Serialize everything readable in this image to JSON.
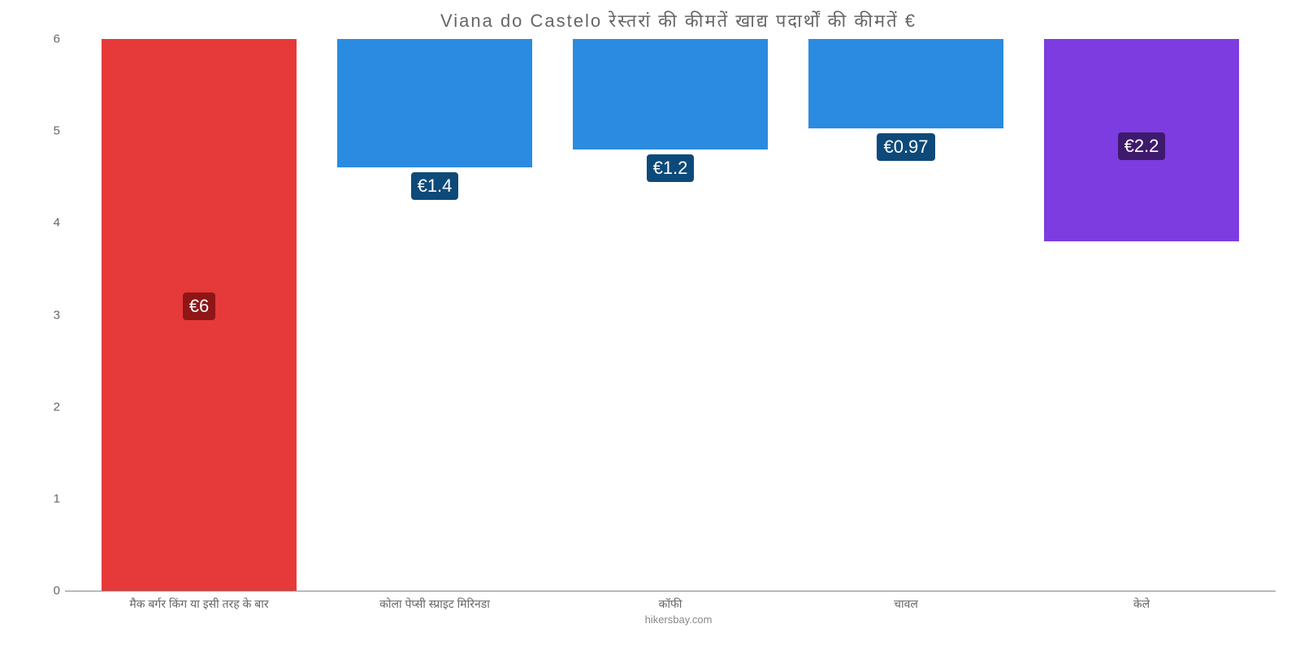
{
  "chart": {
    "type": "bar",
    "title": "Viana do Castelo रेस्तरां की कीमतें खाद्य पदार्थों की कीमतें €",
    "title_fontsize": 22,
    "title_color": "#666666",
    "credit": "hikersbay.com",
    "credit_color": "#888888",
    "background_color": "#ffffff",
    "axis_color": "#888888",
    "ylim_min": 0,
    "ylim_max": 6,
    "ytick_step": 1,
    "ytick_color": "#666666",
    "ytick_fontsize": 15,
    "xlabel_color": "#666666",
    "xlabel_fontsize": 14,
    "value_label_color": "#ffffff",
    "value_label_fontsize": 22,
    "bars": [
      {
        "category": "मैक बर्गर किंग या इसी तरह के बार",
        "value": 6,
        "value_label": "€6",
        "color": "#e63939",
        "badge_bg": "#8e1616",
        "label_inside": true
      },
      {
        "category": "कोला पेप्सी स्प्राइट मिरिनडा",
        "value": 1.4,
        "value_label": "€1.4",
        "color": "#2a8be0",
        "badge_bg": "#0d4a7a",
        "label_inside": false
      },
      {
        "category": "कॉफी",
        "value": 1.2,
        "value_label": "€1.2",
        "color": "#2a8be0",
        "badge_bg": "#0d4a7a",
        "label_inside": false
      },
      {
        "category": "चावल",
        "value": 0.97,
        "value_label": "€0.97",
        "color": "#2a8be0",
        "badge_bg": "#0d4a7a",
        "label_inside": false
      },
      {
        "category": "केले",
        "value": 2.2,
        "value_label": "€2.2",
        "color": "#7c3ce0",
        "badge_bg": "#3e1a6d",
        "label_inside": true
      }
    ],
    "yticks": [
      {
        "v": 0,
        "label": "0"
      },
      {
        "v": 1,
        "label": "1"
      },
      {
        "v": 2,
        "label": "2"
      },
      {
        "v": 3,
        "label": "3"
      },
      {
        "v": 4,
        "label": "4"
      },
      {
        "v": 5,
        "label": "5"
      },
      {
        "v": 6,
        "label": "6"
      }
    ]
  }
}
